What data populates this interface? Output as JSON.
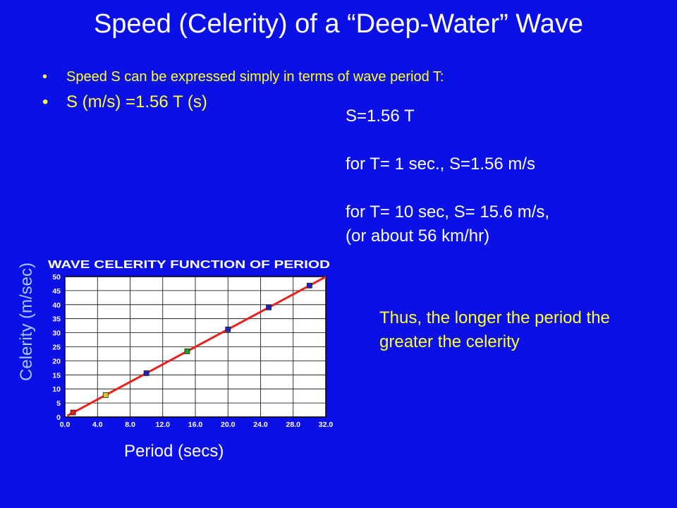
{
  "slide": {
    "title": "Speed (Celerity) of a “Deep-Water” Wave",
    "bullet_1": "Speed S can be expressed simply in terms of wave period T:",
    "bullet_2": "S (m/s) =1.56 T (s)",
    "formula": "S=1.56 T",
    "example_1": "for T= 1 sec., S=1.56 m/s",
    "example_2_line1": "for T= 10 sec, S= 15.6 m/s,",
    "example_2_line2": "(or about 56 km/hr)",
    "conclusion": "Thus, the longer the period the greater the celerity",
    "y_axis_label": "Celerity (m/sec)",
    "x_axis_label": "Period (secs)",
    "colors": {
      "background": "#0a10e6",
      "title_text": "#ffffff",
      "bullet_text": "#ffff33",
      "axis_label": "#a8c8ff",
      "fit_line": "#e8211c"
    }
  },
  "chart_data": {
    "type": "scatter",
    "title": "WAVE CELERITY FUNCTION OF PERIOD",
    "xlabel": "",
    "ylabel": "",
    "xlim": [
      0,
      32
    ],
    "ylim": [
      0,
      50
    ],
    "x_ticks": [
      "0.0",
      "4.0",
      "8.0",
      "12.0",
      "16.0",
      "20.0",
      "24.0",
      "28.0",
      "32.0"
    ],
    "y_ticks": [
      "0",
      "5",
      "10",
      "15",
      "20",
      "25",
      "30",
      "35",
      "40",
      "45",
      "50"
    ],
    "grid": true,
    "points": [
      {
        "x": 1,
        "y": 1.6,
        "color": "#e02020"
      },
      {
        "x": 5,
        "y": 7.8,
        "color": "#e8c020"
      },
      {
        "x": 10,
        "y": 15.6,
        "color": "#2020c0"
      },
      {
        "x": 15,
        "y": 23.4,
        "color": "#20a020"
      },
      {
        "x": 20,
        "y": 31.2,
        "color": "#2020c0"
      },
      {
        "x": 25,
        "y": 39.0,
        "color": "#2020c0"
      },
      {
        "x": 30,
        "y": 46.8,
        "color": "#2020c0"
      }
    ],
    "fit_line": {
      "slope": 1.56,
      "intercept": 0,
      "x_range": [
        0.3,
        32
      ]
    }
  }
}
